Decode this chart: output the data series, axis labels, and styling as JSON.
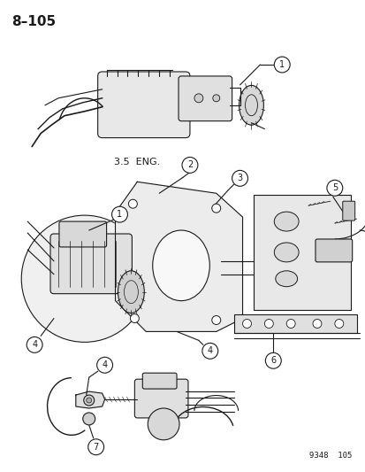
{
  "page_number": "8–105",
  "catalog_number": "9348  105",
  "label_35eng": "3.5  ENG.",
  "background_color": "#f5f5f0",
  "line_color": "#1a1a1a",
  "text_color": "#1a1a1a",
  "fig_width": 4.14,
  "fig_height": 5.33,
  "dpi": 100
}
